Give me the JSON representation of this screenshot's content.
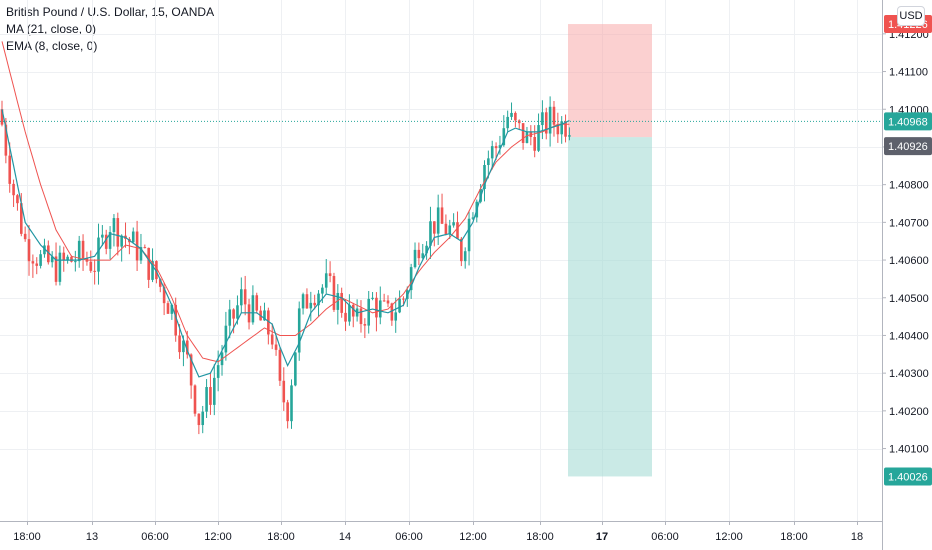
{
  "legend": {
    "title": "British Pound / U.S. Dollar, 15, OANDA",
    "ma": "MA (21, close, 0)",
    "ema": "EMA (8, close, 0)"
  },
  "currency_badge": "USD",
  "colors": {
    "up": "#26a69a",
    "down": "#ef5350",
    "ma": "#ef5350",
    "ema": "#2196a3",
    "stop_zone": "#f7a9a9",
    "target_zone": "#a7dcd6",
    "grid": "#eef0f3"
  },
  "chart_data": {
    "type": "candlestick",
    "symbol": "British Pound / U.S. Dollar",
    "timeframe": "15",
    "source": "OANDA",
    "grid": true,
    "y_axis": {
      "position": "right",
      "ylim": [
        1.4006,
        1.4129
      ],
      "ticks": [
        "1.41200",
        "1.41100",
        "1.41000",
        "1.40900",
        "1.40800",
        "1.40700",
        "1.40600",
        "1.40500",
        "1.40400",
        "1.40300",
        "1.40200",
        "1.40100"
      ],
      "tick_values": [
        1.412,
        1.411,
        1.41,
        1.409,
        1.408,
        1.407,
        1.406,
        1.405,
        1.404,
        1.403,
        1.402,
        1.401
      ]
    },
    "x_axis": {
      "ticks": [
        "18:00",
        "13",
        "06:00",
        "12:00",
        "18:00",
        "14",
        "06:00",
        "12:00",
        "18:00",
        "17",
        "06:00",
        "12:00",
        "18:00",
        "18"
      ],
      "bold_ticks": [
        "17"
      ]
    },
    "price_tags": [
      {
        "value": "1.41226",
        "kind": "stop"
      },
      {
        "value": "1.40968",
        "kind": "last"
      },
      {
        "value": "1.40926",
        "kind": "entry"
      },
      {
        "value": "1.40026",
        "kind": "target"
      }
    ],
    "position": {
      "type": "short",
      "entry": 1.40926,
      "stop": 1.41226,
      "target": 1.40026
    },
    "last_price": 1.40968,
    "close_anchors": [
      [
        0,
        1.4096
      ],
      [
        3,
        1.4078
      ],
      [
        6,
        1.4065
      ],
      [
        10,
        1.406
      ],
      [
        14,
        1.4058
      ],
      [
        20,
        1.4061
      ],
      [
        24,
        1.4059
      ],
      [
        28,
        1.407
      ],
      [
        32,
        1.4066
      ],
      [
        36,
        1.4062
      ],
      [
        40,
        1.4055
      ],
      [
        44,
        1.4047
      ],
      [
        48,
        1.4033
      ],
      [
        51,
        1.4018
      ],
      [
        54,
        1.4025
      ],
      [
        58,
        1.404
      ],
      [
        62,
        1.405
      ],
      [
        66,
        1.4045
      ],
      [
        70,
        1.404
      ],
      [
        72,
        1.4025
      ],
      [
        74,
        1.4021
      ],
      [
        77,
        1.4045
      ],
      [
        80,
        1.4052
      ],
      [
        84,
        1.4053
      ],
      [
        88,
        1.4048
      ],
      [
        92,
        1.4043
      ],
      [
        96,
        1.4049
      ],
      [
        100,
        1.4045
      ],
      [
        104,
        1.405
      ],
      [
        108,
        1.4065
      ],
      [
        112,
        1.407
      ],
      [
        116,
        1.4068
      ],
      [
        119,
        1.4062
      ],
      [
        122,
        1.4075
      ],
      [
        125,
        1.4086
      ],
      [
        128,
        1.409
      ],
      [
        131,
        1.4098
      ],
      [
        133,
        1.4095
      ],
      [
        136,
        1.4092
      ],
      [
        139,
        1.4094
      ],
      [
        142,
        1.4097
      ],
      [
        145,
        1.4096
      ],
      [
        147,
        1.40968
      ]
    ],
    "ma_anchors": [
      [
        0,
        1.4118
      ],
      [
        6,
        1.4094
      ],
      [
        10,
        1.408
      ],
      [
        14,
        1.4068
      ],
      [
        18,
        1.4061
      ],
      [
        22,
        1.406
      ],
      [
        28,
        1.406
      ],
      [
        32,
        1.4064
      ],
      [
        36,
        1.4063
      ],
      [
        40,
        1.4058
      ],
      [
        44,
        1.405
      ],
      [
        48,
        1.404
      ],
      [
        52,
        1.4034
      ],
      [
        56,
        1.4033
      ],
      [
        60,
        1.4036
      ],
      [
        64,
        1.4039
      ],
      [
        68,
        1.4042
      ],
      [
        72,
        1.404
      ],
      [
        76,
        1.404
      ],
      [
        80,
        1.4043
      ],
      [
        84,
        1.4047
      ],
      [
        88,
        1.405
      ],
      [
        92,
        1.4048
      ],
      [
        96,
        1.4046
      ],
      [
        100,
        1.4047
      ],
      [
        104,
        1.4051
      ],
      [
        108,
        1.4057
      ],
      [
        112,
        1.4062
      ],
      [
        116,
        1.4066
      ],
      [
        120,
        1.4071
      ],
      [
        124,
        1.4079
      ],
      [
        128,
        1.4086
      ],
      [
        132,
        1.409
      ],
      [
        136,
        1.4093
      ],
      [
        140,
        1.4094
      ],
      [
        144,
        1.4096
      ],
      [
        147,
        1.4096
      ]
    ],
    "ema_anchors": [
      [
        0,
        1.41
      ],
      [
        3,
        1.4085
      ],
      [
        6,
        1.407
      ],
      [
        10,
        1.4064
      ],
      [
        14,
        1.406
      ],
      [
        20,
        1.406
      ],
      [
        24,
        1.4061
      ],
      [
        28,
        1.4067
      ],
      [
        32,
        1.4066
      ],
      [
        36,
        1.4063
      ],
      [
        40,
        1.4057
      ],
      [
        44,
        1.4048
      ],
      [
        48,
        1.4036
      ],
      [
        51,
        1.4029
      ],
      [
        54,
        1.403
      ],
      [
        58,
        1.4038
      ],
      [
        62,
        1.4046
      ],
      [
        66,
        1.4046
      ],
      [
        70,
        1.4043
      ],
      [
        72,
        1.4037
      ],
      [
        74,
        1.4032
      ],
      [
        77,
        1.4038
      ],
      [
        80,
        1.4046
      ],
      [
        84,
        1.4051
      ],
      [
        88,
        1.405
      ],
      [
        92,
        1.4046
      ],
      [
        96,
        1.4047
      ],
      [
        100,
        1.4046
      ],
      [
        104,
        1.4048
      ],
      [
        108,
        1.4058
      ],
      [
        112,
        1.4066
      ],
      [
        116,
        1.4067
      ],
      [
        119,
        1.4065
      ],
      [
        122,
        1.407
      ],
      [
        125,
        1.408
      ],
      [
        128,
        1.4087
      ],
      [
        131,
        1.4094
      ],
      [
        133,
        1.4095
      ],
      [
        136,
        1.4094
      ],
      [
        139,
        1.4094
      ],
      [
        142,
        1.4095
      ],
      [
        145,
        1.4096
      ],
      [
        147,
        1.4097
      ]
    ]
  }
}
